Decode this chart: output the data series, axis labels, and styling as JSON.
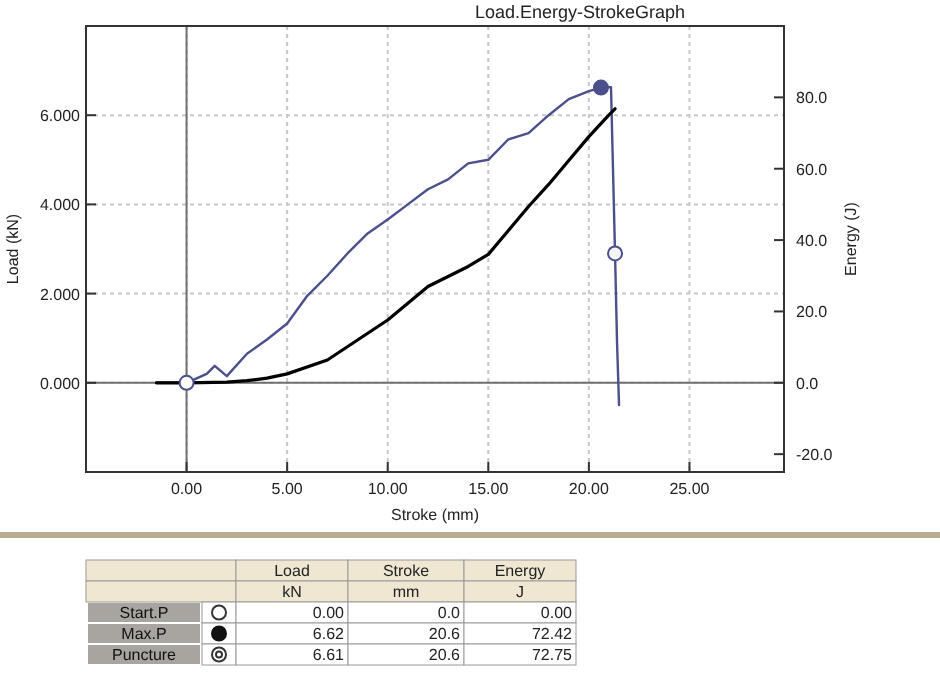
{
  "chart_data": {
    "type": "line",
    "title": "Load.Energy-StrokeGraph",
    "xlabel": "Stroke (mm)",
    "ylabel": "Load (kN)",
    "y2label": "Energy (J)",
    "xlim": [
      -5,
      29.7
    ],
    "xticks": [
      {
        "value": 0,
        "label": "0.00"
      },
      {
        "value": 5,
        "label": "5.00"
      },
      {
        "value": 10,
        "label": "10.00"
      },
      {
        "value": 15,
        "label": "15.00"
      },
      {
        "value": 20,
        "label": "20.00"
      },
      {
        "value": 25,
        "label": "25.00"
      }
    ],
    "ylim": [
      -2,
      8
    ],
    "yticks": [
      {
        "value": 0,
        "label": "0.000"
      },
      {
        "value": 2,
        "label": "2.000"
      },
      {
        "value": 4,
        "label": "4.000"
      },
      {
        "value": 6,
        "label": "6.000"
      }
    ],
    "y2lim": [
      -25,
      100
    ],
    "y2ticks": [
      {
        "value": -20,
        "label": "-20.0"
      },
      {
        "value": 0,
        "label": "0.0"
      },
      {
        "value": 20,
        "label": "20.0"
      },
      {
        "value": 40,
        "label": "40.0"
      },
      {
        "value": 60,
        "label": "60.0"
      },
      {
        "value": 80,
        "label": "80.0"
      }
    ],
    "grid": true,
    "line_style": "solid",
    "marker": "none",
    "series": [
      {
        "color": "#4b4f8c",
        "x": [
          -1.5,
          0,
          1,
          1.4,
          2,
          3,
          4,
          5,
          6,
          7,
          8,
          9,
          10,
          11,
          12,
          13,
          14,
          15,
          16,
          17,
          18,
          19,
          20,
          20.6,
          21.1,
          21.3,
          21.4,
          21.5
        ],
        "values": [
          0,
          0,
          0.2,
          0.38,
          0.15,
          0.65,
          0.97,
          1.33,
          1.95,
          2.4,
          2.9,
          3.35,
          3.66,
          4,
          4.34,
          4.56,
          4.92,
          5,
          5.46,
          5.6,
          6,
          6.36,
          6.54,
          6.62,
          6.63,
          2.9,
          0.9,
          -0.5
        ]
      },
      {
        "color": "#000000",
        "axis": "y2",
        "x": [
          -1.5,
          0,
          2,
          3,
          4,
          5,
          7,
          10,
          12,
          14,
          15,
          16,
          17,
          18,
          19,
          20,
          21,
          21.3
        ],
        "values": [
          0,
          0,
          0.2,
          0.6,
          1.3,
          2.5,
          6.4,
          17.6,
          27,
          32.6,
          36,
          42.7,
          49.4,
          55.6,
          62.3,
          69,
          75.1,
          76.8
        ]
      },
      {
        "type": "scatter",
        "marker": "circle",
        "color": "#ffffff",
        "x": [
          0
        ],
        "values": [
          0
        ]
      },
      {
        "type": "scatter",
        "marker": "circle",
        "color": "#4b4f8c",
        "x": [
          20.6
        ],
        "values": [
          6.62
        ]
      },
      {
        "type": "scatter",
        "marker": "circle",
        "color": "#f4f4f4",
        "x": [
          21.3
        ],
        "values": [
          2.9
        ]
      }
    ],
    "annotations": [
      "Load",
      "Stroke",
      "Energy",
      "kN",
      "mm",
      "J",
      "Start.P",
      "0.00",
      "0.0",
      "0.00",
      "Max.P",
      "6.62",
      "20.6",
      "72.42",
      "Puncture",
      "6.61",
      "20.6",
      "72.75"
    ]
  }
}
